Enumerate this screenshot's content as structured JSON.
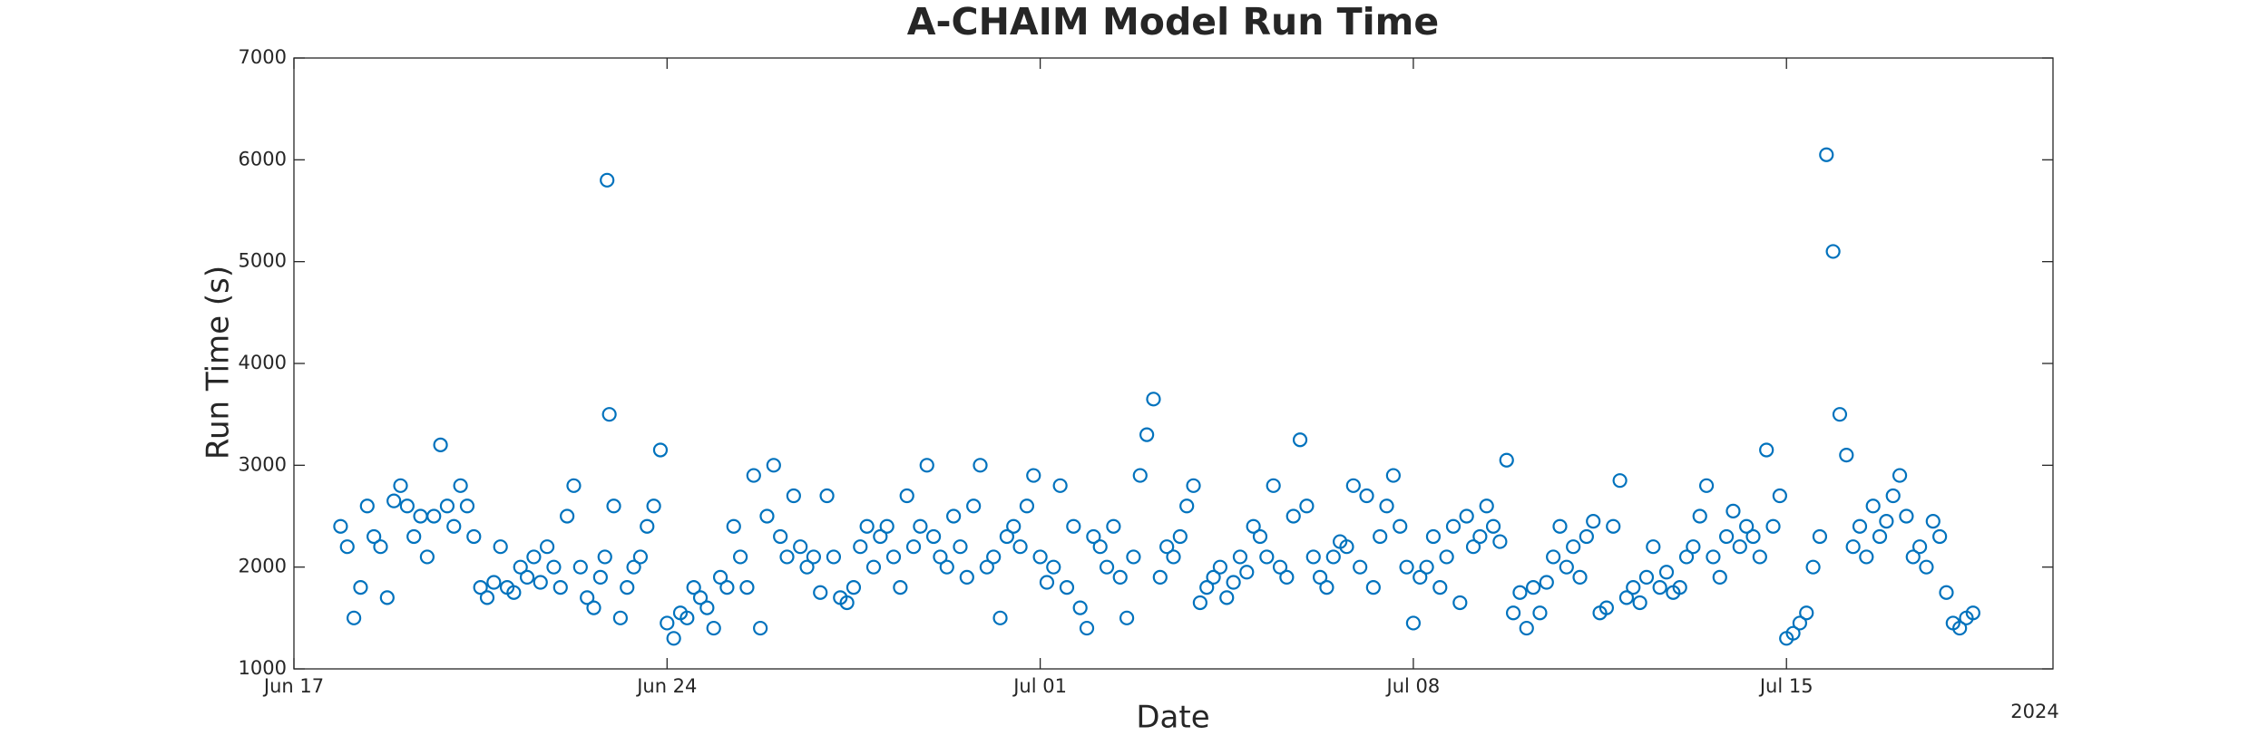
{
  "chart_data": {
    "type": "scatter",
    "title": "A-CHAIM Model Run Time",
    "xlabel": "Date",
    "ylabel": "Run Time (s)",
    "x_year_label": "2024",
    "color": "#0072bd",
    "marker": "circle",
    "xlim": [
      "2024-06-17T00:00",
      "2024-07-20T00:00"
    ],
    "xticks": [
      {
        "value": "2024-06-17T00:00",
        "label": "Jun 17"
      },
      {
        "value": "2024-06-24T00:00",
        "label": "Jun 24"
      },
      {
        "value": "2024-07-01T00:00",
        "label": "Jul 01"
      },
      {
        "value": "2024-07-08T00:00",
        "label": "Jul 08"
      },
      {
        "value": "2024-07-15T00:00",
        "label": "Jul 15"
      }
    ],
    "ylim": [
      1000,
      7000
    ],
    "yticks": [
      1000,
      2000,
      3000,
      4000,
      5000,
      6000,
      7000
    ],
    "grid": false,
    "x": [
      "2024-06-17T21:00",
      "2024-06-18T00:00",
      "2024-06-18T03:00",
      "2024-06-18T06:00",
      "2024-06-18T09:00",
      "2024-06-18T12:00",
      "2024-06-18T15:00",
      "2024-06-18T18:00",
      "2024-06-18T21:00",
      "2024-06-19T00:00",
      "2024-06-19T03:00",
      "2024-06-19T06:00",
      "2024-06-19T09:00",
      "2024-06-19T12:00",
      "2024-06-19T15:00",
      "2024-06-19T18:00",
      "2024-06-19T21:00",
      "2024-06-20T00:00",
      "2024-06-20T03:00",
      "2024-06-20T06:00",
      "2024-06-20T09:00",
      "2024-06-20T12:00",
      "2024-06-20T15:00",
      "2024-06-20T18:00",
      "2024-06-20T21:00",
      "2024-06-21T00:00",
      "2024-06-21T03:00",
      "2024-06-21T06:00",
      "2024-06-21T09:00",
      "2024-06-21T12:00",
      "2024-06-21T15:00",
      "2024-06-21T18:00",
      "2024-06-21T21:00",
      "2024-06-22T00:00",
      "2024-06-22T03:00",
      "2024-06-22T06:00",
      "2024-06-22T09:00",
      "2024-06-22T12:00",
      "2024-06-22T15:00",
      "2024-06-22T18:00",
      "2024-06-22T20:00",
      "2024-06-22T21:00",
      "2024-06-22T22:00",
      "2024-06-23T00:00",
      "2024-06-23T03:00",
      "2024-06-23T06:00",
      "2024-06-23T09:00",
      "2024-06-23T12:00",
      "2024-06-23T15:00",
      "2024-06-23T18:00",
      "2024-06-23T21:00",
      "2024-06-24T00:00",
      "2024-06-24T03:00",
      "2024-06-24T06:00",
      "2024-06-24T09:00",
      "2024-06-24T12:00",
      "2024-06-24T15:00",
      "2024-06-24T18:00",
      "2024-06-24T21:00",
      "2024-06-25T00:00",
      "2024-06-25T03:00",
      "2024-06-25T06:00",
      "2024-06-25T09:00",
      "2024-06-25T12:00",
      "2024-06-25T15:00",
      "2024-06-25T18:00",
      "2024-06-25T21:00",
      "2024-06-26T00:00",
      "2024-06-26T03:00",
      "2024-06-26T06:00",
      "2024-06-26T09:00",
      "2024-06-26T12:00",
      "2024-06-26T15:00",
      "2024-06-26T18:00",
      "2024-06-26T21:00",
      "2024-06-27T00:00",
      "2024-06-27T03:00",
      "2024-06-27T06:00",
      "2024-06-27T09:00",
      "2024-06-27T12:00",
      "2024-06-27T15:00",
      "2024-06-27T18:00",
      "2024-06-27T21:00",
      "2024-06-28T00:00",
      "2024-06-28T03:00",
      "2024-06-28T06:00",
      "2024-06-28T09:00",
      "2024-06-28T12:00",
      "2024-06-28T15:00",
      "2024-06-28T18:00",
      "2024-06-28T21:00",
      "2024-06-29T00:00",
      "2024-06-29T03:00",
      "2024-06-29T06:00",
      "2024-06-29T09:00",
      "2024-06-29T12:00",
      "2024-06-29T15:00",
      "2024-06-29T18:00",
      "2024-06-29T21:00",
      "2024-06-30T00:00",
      "2024-06-30T03:00",
      "2024-06-30T06:00",
      "2024-06-30T09:00",
      "2024-06-30T12:00",
      "2024-06-30T15:00",
      "2024-06-30T18:00",
      "2024-06-30T21:00",
      "2024-07-01T00:00",
      "2024-07-01T03:00",
      "2024-07-01T06:00",
      "2024-07-01T09:00",
      "2024-07-01T12:00",
      "2024-07-01T15:00",
      "2024-07-01T18:00",
      "2024-07-01T21:00",
      "2024-07-02T00:00",
      "2024-07-02T03:00",
      "2024-07-02T06:00",
      "2024-07-02T09:00",
      "2024-07-02T12:00",
      "2024-07-02T15:00",
      "2024-07-02T18:00",
      "2024-07-02T21:00",
      "2024-07-03T00:00",
      "2024-07-03T03:00",
      "2024-07-03T06:00",
      "2024-07-03T09:00",
      "2024-07-03T12:00",
      "2024-07-03T15:00",
      "2024-07-03T18:00",
      "2024-07-03T21:00",
      "2024-07-04T00:00",
      "2024-07-04T03:00",
      "2024-07-04T06:00",
      "2024-07-04T09:00",
      "2024-07-04T12:00",
      "2024-07-04T15:00",
      "2024-07-04T18:00",
      "2024-07-04T21:00",
      "2024-07-05T00:00",
      "2024-07-05T03:00",
      "2024-07-05T06:00",
      "2024-07-05T09:00",
      "2024-07-05T12:00",
      "2024-07-05T15:00",
      "2024-07-05T18:00",
      "2024-07-05T21:00",
      "2024-07-06T00:00",
      "2024-07-06T03:00",
      "2024-07-06T06:00",
      "2024-07-06T09:00",
      "2024-07-06T12:00",
      "2024-07-06T15:00",
      "2024-07-06T18:00",
      "2024-07-06T21:00",
      "2024-07-07T00:00",
      "2024-07-07T03:00",
      "2024-07-07T06:00",
      "2024-07-07T09:00",
      "2024-07-07T12:00",
      "2024-07-07T15:00",
      "2024-07-07T18:00",
      "2024-07-07T21:00",
      "2024-07-08T00:00",
      "2024-07-08T03:00",
      "2024-07-08T06:00",
      "2024-07-08T09:00",
      "2024-07-08T12:00",
      "2024-07-08T15:00",
      "2024-07-08T18:00",
      "2024-07-08T21:00",
      "2024-07-09T00:00",
      "2024-07-09T03:00",
      "2024-07-09T06:00",
      "2024-07-09T09:00",
      "2024-07-09T12:00",
      "2024-07-09T15:00",
      "2024-07-09T18:00",
      "2024-07-09T21:00",
      "2024-07-10T00:00",
      "2024-07-10T03:00",
      "2024-07-10T06:00",
      "2024-07-10T09:00",
      "2024-07-10T12:00",
      "2024-07-10T15:00",
      "2024-07-10T18:00",
      "2024-07-10T21:00",
      "2024-07-11T00:00",
      "2024-07-11T03:00",
      "2024-07-11T06:00",
      "2024-07-11T09:00",
      "2024-07-11T12:00",
      "2024-07-11T15:00",
      "2024-07-11T18:00",
      "2024-07-11T21:00",
      "2024-07-12T00:00",
      "2024-07-12T03:00",
      "2024-07-12T06:00",
      "2024-07-12T09:00",
      "2024-07-12T12:00",
      "2024-07-12T15:00",
      "2024-07-12T18:00",
      "2024-07-12T21:00",
      "2024-07-13T00:00",
      "2024-07-13T03:00",
      "2024-07-13T06:00",
      "2024-07-13T09:00",
      "2024-07-13T12:00",
      "2024-07-13T15:00",
      "2024-07-13T18:00",
      "2024-07-13T21:00",
      "2024-07-14T00:00",
      "2024-07-14T03:00",
      "2024-07-14T06:00",
      "2024-07-14T09:00",
      "2024-07-14T12:00",
      "2024-07-14T15:00",
      "2024-07-14T18:00",
      "2024-07-14T21:00",
      "2024-07-15T00:00",
      "2024-07-15T03:00",
      "2024-07-15T06:00",
      "2024-07-15T09:00",
      "2024-07-15T12:00",
      "2024-07-15T15:00",
      "2024-07-15T18:00",
      "2024-07-15T21:00",
      "2024-07-16T00:00",
      "2024-07-16T03:00",
      "2024-07-16T06:00",
      "2024-07-16T09:00",
      "2024-07-16T12:00",
      "2024-07-16T15:00",
      "2024-07-16T18:00",
      "2024-07-16T21:00",
      "2024-07-17T00:00",
      "2024-07-17T03:00",
      "2024-07-17T06:00",
      "2024-07-17T09:00",
      "2024-07-17T12:00",
      "2024-07-17T15:00",
      "2024-07-17T18:00",
      "2024-07-17T21:00",
      "2024-07-18T00:00",
      "2024-07-18T03:00",
      "2024-07-18T06:00",
      "2024-07-18T09:00",
      "2024-07-18T12:00"
    ],
    "values": [
      2400,
      2200,
      1500,
      1800,
      2600,
      2300,
      2200,
      1700,
      2650,
      2800,
      2600,
      2300,
      2500,
      2100,
      2500,
      3200,
      2600,
      2400,
      2800,
      2600,
      2300,
      1800,
      1700,
      1850,
      2200,
      1800,
      1750,
      2000,
      1900,
      2100,
      1850,
      2200,
      2000,
      1800,
      2500,
      2800,
      2000,
      1700,
      1600,
      1900,
      2100,
      5800,
      3500,
      2600,
      1500,
      1800,
      2000,
      2100,
      2400,
      2600,
      3150,
      1450,
      1300,
      1550,
      1500,
      1800,
      1700,
      1600,
      1400,
      1900,
      1800,
      2400,
      2100,
      1800,
      2900,
      1400,
      2500,
      3000,
      2300,
      2100,
      2700,
      2200,
      2000,
      2100,
      1750,
      2700,
      2100,
      1700,
      1650,
      1800,
      2200,
      2400,
      2000,
      2300,
      2400,
      2100,
      1800,
      2700,
      2200,
      2400,
      3000,
      2300,
      2100,
      2000,
      2500,
      2200,
      1900,
      2600,
      3000,
      2000,
      2100,
      1500,
      2300,
      2400,
      2200,
      2600,
      2900,
      2100,
      1850,
      2000,
      2800,
      1800,
      2400,
      1600,
      1400,
      2300,
      2200,
      2000,
      2400,
      1900,
      1500,
      2100,
      2900,
      3300,
      3650,
      1900,
      2200,
      2100,
      2300,
      2600,
      2800,
      1650,
      1800,
      1900,
      2000,
      1700,
      1850,
      2100,
      1950,
      2400,
      2300,
      2100,
      2800,
      2000,
      1900,
      2500,
      3250,
      2600,
      2100,
      1900,
      1800,
      2100,
      2250,
      2200,
      2800,
      2000,
      2700,
      1800,
      2300,
      2600,
      2900,
      2400,
      2000,
      1450,
      1900,
      2000,
      2300,
      1800,
      2100,
      2400,
      1650,
      2500,
      2200,
      2300,
      2600,
      2400,
      2250,
      3050,
      1550,
      1750,
      1400,
      1800,
      1550,
      1850,
      2100,
      2400,
      2000,
      2200,
      1900,
      2300,
      2450,
      1550,
      1600,
      2400,
      2850,
      1700,
      1800,
      1650,
      1900,
      2200,
      1800,
      1950,
      1750,
      1800,
      2100,
      2200,
      2500,
      2800,
      2100,
      1900,
      2300,
      2550,
      2200,
      2400,
      2300,
      2100,
      3150,
      2400,
      2700,
      1300,
      1350,
      1450,
      1550,
      2000,
      2300,
      6050,
      5100,
      3500,
      3100,
      2200,
      2400,
      2100,
      2600,
      2300,
      2450,
      2700,
      2900,
      2500,
      2100,
      2200,
      2000,
      2450,
      2300,
      1750,
      1450,
      1400,
      1500,
      1550
    ]
  }
}
